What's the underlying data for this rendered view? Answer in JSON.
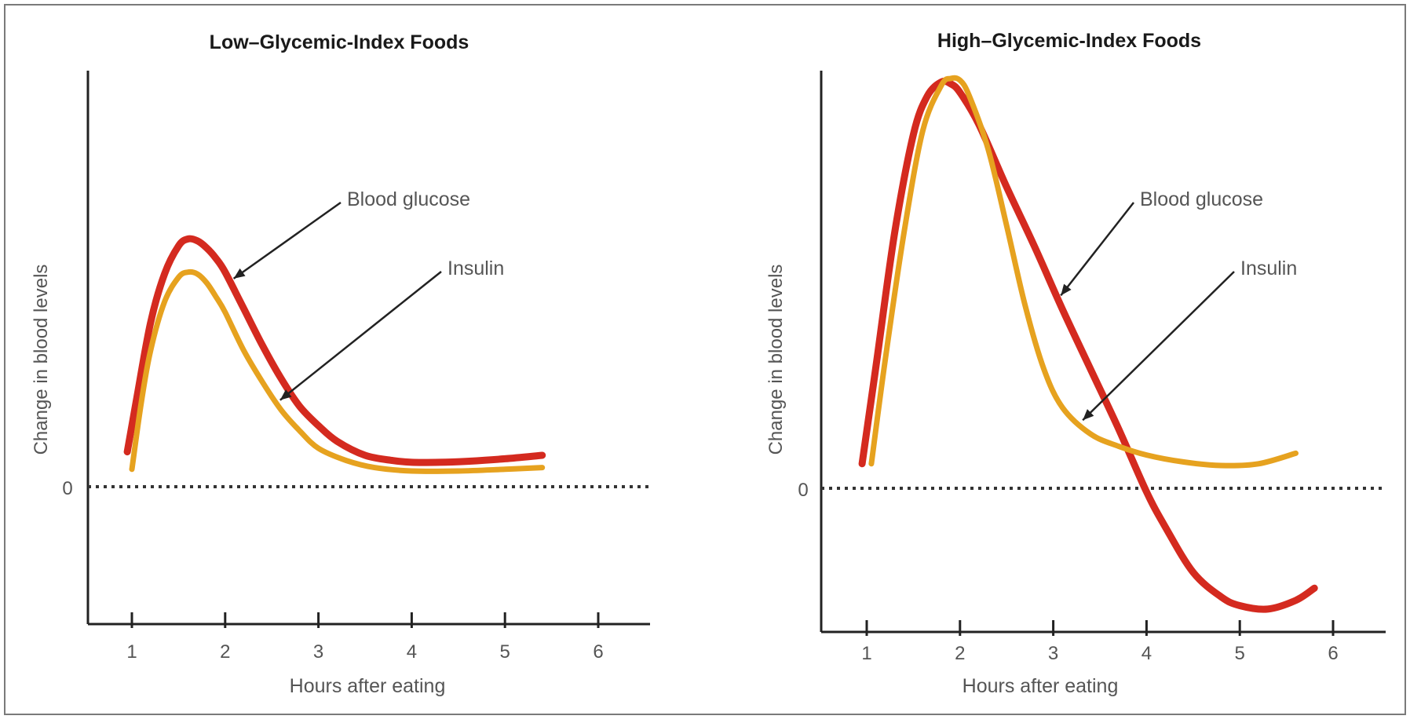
{
  "chart_data": [
    {
      "type": "line",
      "title": "Low–Glycemic-Index Foods",
      "xlabel": "Hours after eating",
      "ylabel": "Change  in blood levels",
      "xticks": [
        1,
        2,
        3,
        4,
        5,
        6
      ],
      "xlim": [
        0.55,
        6.55
      ],
      "ylim": [
        -0.45,
        1.25
      ],
      "yticks": [
        {
          "value": 0,
          "label": "0"
        }
      ],
      "zero_line": "dotted",
      "grid": false,
      "series": [
        {
          "name": "Blood glucose",
          "color": "#d42a1f",
          "x": [
            0.95,
            1.05,
            1.2,
            1.35,
            1.5,
            1.6,
            1.7,
            1.8,
            1.9,
            2.0,
            2.2,
            2.4,
            2.6,
            2.8,
            3.0,
            3.2,
            3.5,
            3.8,
            4.0,
            4.3,
            4.6,
            5.0,
            5.4
          ],
          "values": [
            0.1,
            0.25,
            0.47,
            0.61,
            0.69,
            0.71,
            0.705,
            0.685,
            0.655,
            0.615,
            0.51,
            0.405,
            0.31,
            0.23,
            0.175,
            0.13,
            0.09,
            0.075,
            0.07,
            0.07,
            0.073,
            0.08,
            0.09
          ]
        },
        {
          "name": "Insulin",
          "color": "#e6a21f",
          "x": [
            1.0,
            1.1,
            1.2,
            1.35,
            1.5,
            1.6,
            1.7,
            1.8,
            1.9,
            2.0,
            2.2,
            2.4,
            2.6,
            2.8,
            3.0,
            3.3,
            3.6,
            4.0,
            4.5,
            5.0,
            5.4
          ],
          "values": [
            0.05,
            0.24,
            0.39,
            0.53,
            0.6,
            0.615,
            0.61,
            0.585,
            0.545,
            0.5,
            0.39,
            0.3,
            0.22,
            0.16,
            0.11,
            0.075,
            0.055,
            0.045,
            0.045,
            0.05,
            0.055
          ]
        }
      ],
      "annotations": [
        {
          "text": "Blood glucose",
          "series": "Blood glucose",
          "at_x": 2.05
        },
        {
          "text": "Insulin",
          "series": "Insulin",
          "at_x": 2.55
        }
      ]
    },
    {
      "type": "line",
      "title": "High–Glycemic-Index Foods",
      "xlabel": "Hours after eating",
      "ylabel": "Change in blood levels",
      "xticks": [
        1,
        2,
        3,
        4,
        5,
        6
      ],
      "xlim": [
        0.55,
        6.6
      ],
      "ylim": [
        -0.45,
        1.25
      ],
      "yticks": [
        {
          "value": 0,
          "label": "0"
        }
      ],
      "zero_line": "dotted",
      "grid": false,
      "series": [
        {
          "name": "Blood glucose",
          "color": "#d42a1f",
          "x": [
            0.95,
            1.1,
            1.3,
            1.5,
            1.65,
            1.8,
            1.9,
            2.0,
            2.2,
            2.5,
            2.8,
            3.1,
            3.4,
            3.7,
            4.0,
            4.2,
            4.5,
            4.8,
            5.0,
            5.3,
            5.6,
            5.8
          ],
          "values": [
            0.07,
            0.35,
            0.73,
            1.01,
            1.12,
            1.16,
            1.155,
            1.13,
            1.04,
            0.86,
            0.69,
            0.51,
            0.34,
            0.17,
            -0.01,
            -0.11,
            -0.24,
            -0.31,
            -0.335,
            -0.345,
            -0.32,
            -0.285
          ]
        },
        {
          "name": "Insulin",
          "color": "#e6a21f",
          "x": [
            1.05,
            1.2,
            1.4,
            1.6,
            1.8,
            1.9,
            2.0,
            2.1,
            2.3,
            2.5,
            2.7,
            2.9,
            3.1,
            3.4,
            3.7,
            4.0,
            4.4,
            4.8,
            5.2,
            5.6
          ],
          "values": [
            0.07,
            0.37,
            0.73,
            1.02,
            1.15,
            1.17,
            1.165,
            1.12,
            0.97,
            0.75,
            0.52,
            0.34,
            0.23,
            0.155,
            0.12,
            0.095,
            0.075,
            0.065,
            0.07,
            0.1
          ]
        }
      ],
      "annotations": [
        {
          "text": "Blood glucose",
          "series": "Blood glucose",
          "at_x": 3.05
        },
        {
          "text": "Insulin",
          "series": "Insulin",
          "at_x": 3.28
        }
      ]
    }
  ]
}
